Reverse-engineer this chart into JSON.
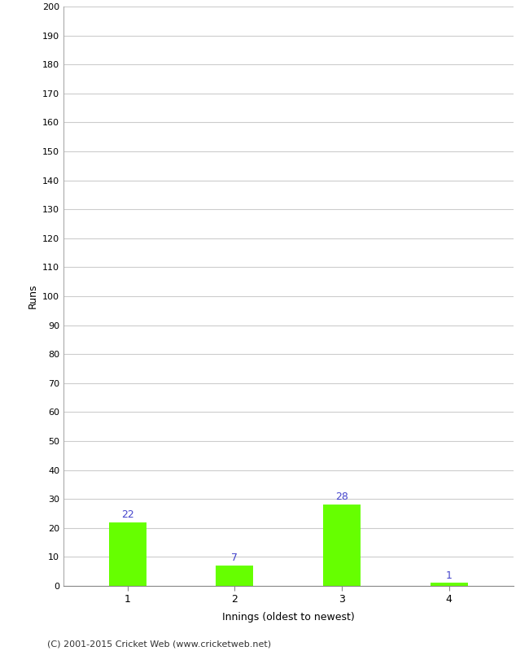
{
  "categories": [
    "1",
    "2",
    "3",
    "4"
  ],
  "values": [
    22,
    7,
    28,
    1
  ],
  "bar_color": "#66ff00",
  "label_color": "#4444cc",
  "ylabel": "Runs",
  "xlabel": "Innings (oldest to newest)",
  "ylim": [
    0,
    200
  ],
  "ytick_step": 10,
  "background_color": "#ffffff",
  "grid_color": "#cccccc",
  "footer": "(C) 2001-2015 Cricket Web (www.cricketweb.net)"
}
